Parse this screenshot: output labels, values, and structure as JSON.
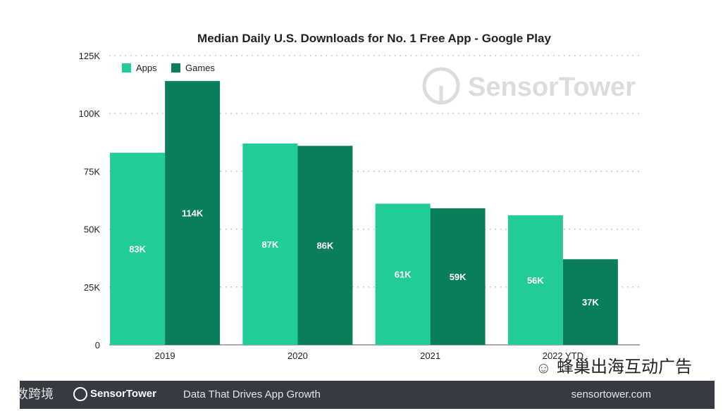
{
  "chart_data": {
    "type": "bar",
    "title": "Median Daily U.S. Downloads for No. 1 Free App - Google Play",
    "categories": [
      "2019",
      "2020",
      "2021",
      "2022 YTD"
    ],
    "series": [
      {
        "name": "Apps",
        "color": "#22cc99",
        "values": [
          83,
          87,
          61,
          56
        ],
        "labels": [
          "83K",
          "87K",
          "61K",
          "56K"
        ]
      },
      {
        "name": "Games",
        "color": "#0a7d5d",
        "values": [
          114,
          86,
          59,
          37
        ],
        "labels": [
          "114K",
          "86K",
          "59K",
          "37K"
        ]
      }
    ],
    "yticks": [
      0,
      25,
      50,
      75,
      100,
      125
    ],
    "ytick_labels": [
      "0",
      "25K",
      "50K",
      "75K",
      "100K",
      "125K"
    ],
    "ylim": [
      0,
      125
    ],
    "xlabel": "",
    "ylabel": "",
    "grid": true,
    "legend": "top-left",
    "watermark": "SensorTower"
  },
  "footer": {
    "brand": "SensorTower",
    "tagline": "Data That Drives App Growth",
    "url": "sensortower.com"
  },
  "overlays": {
    "left": "大数跨境",
    "right": "蜂巢出海互动广告"
  }
}
